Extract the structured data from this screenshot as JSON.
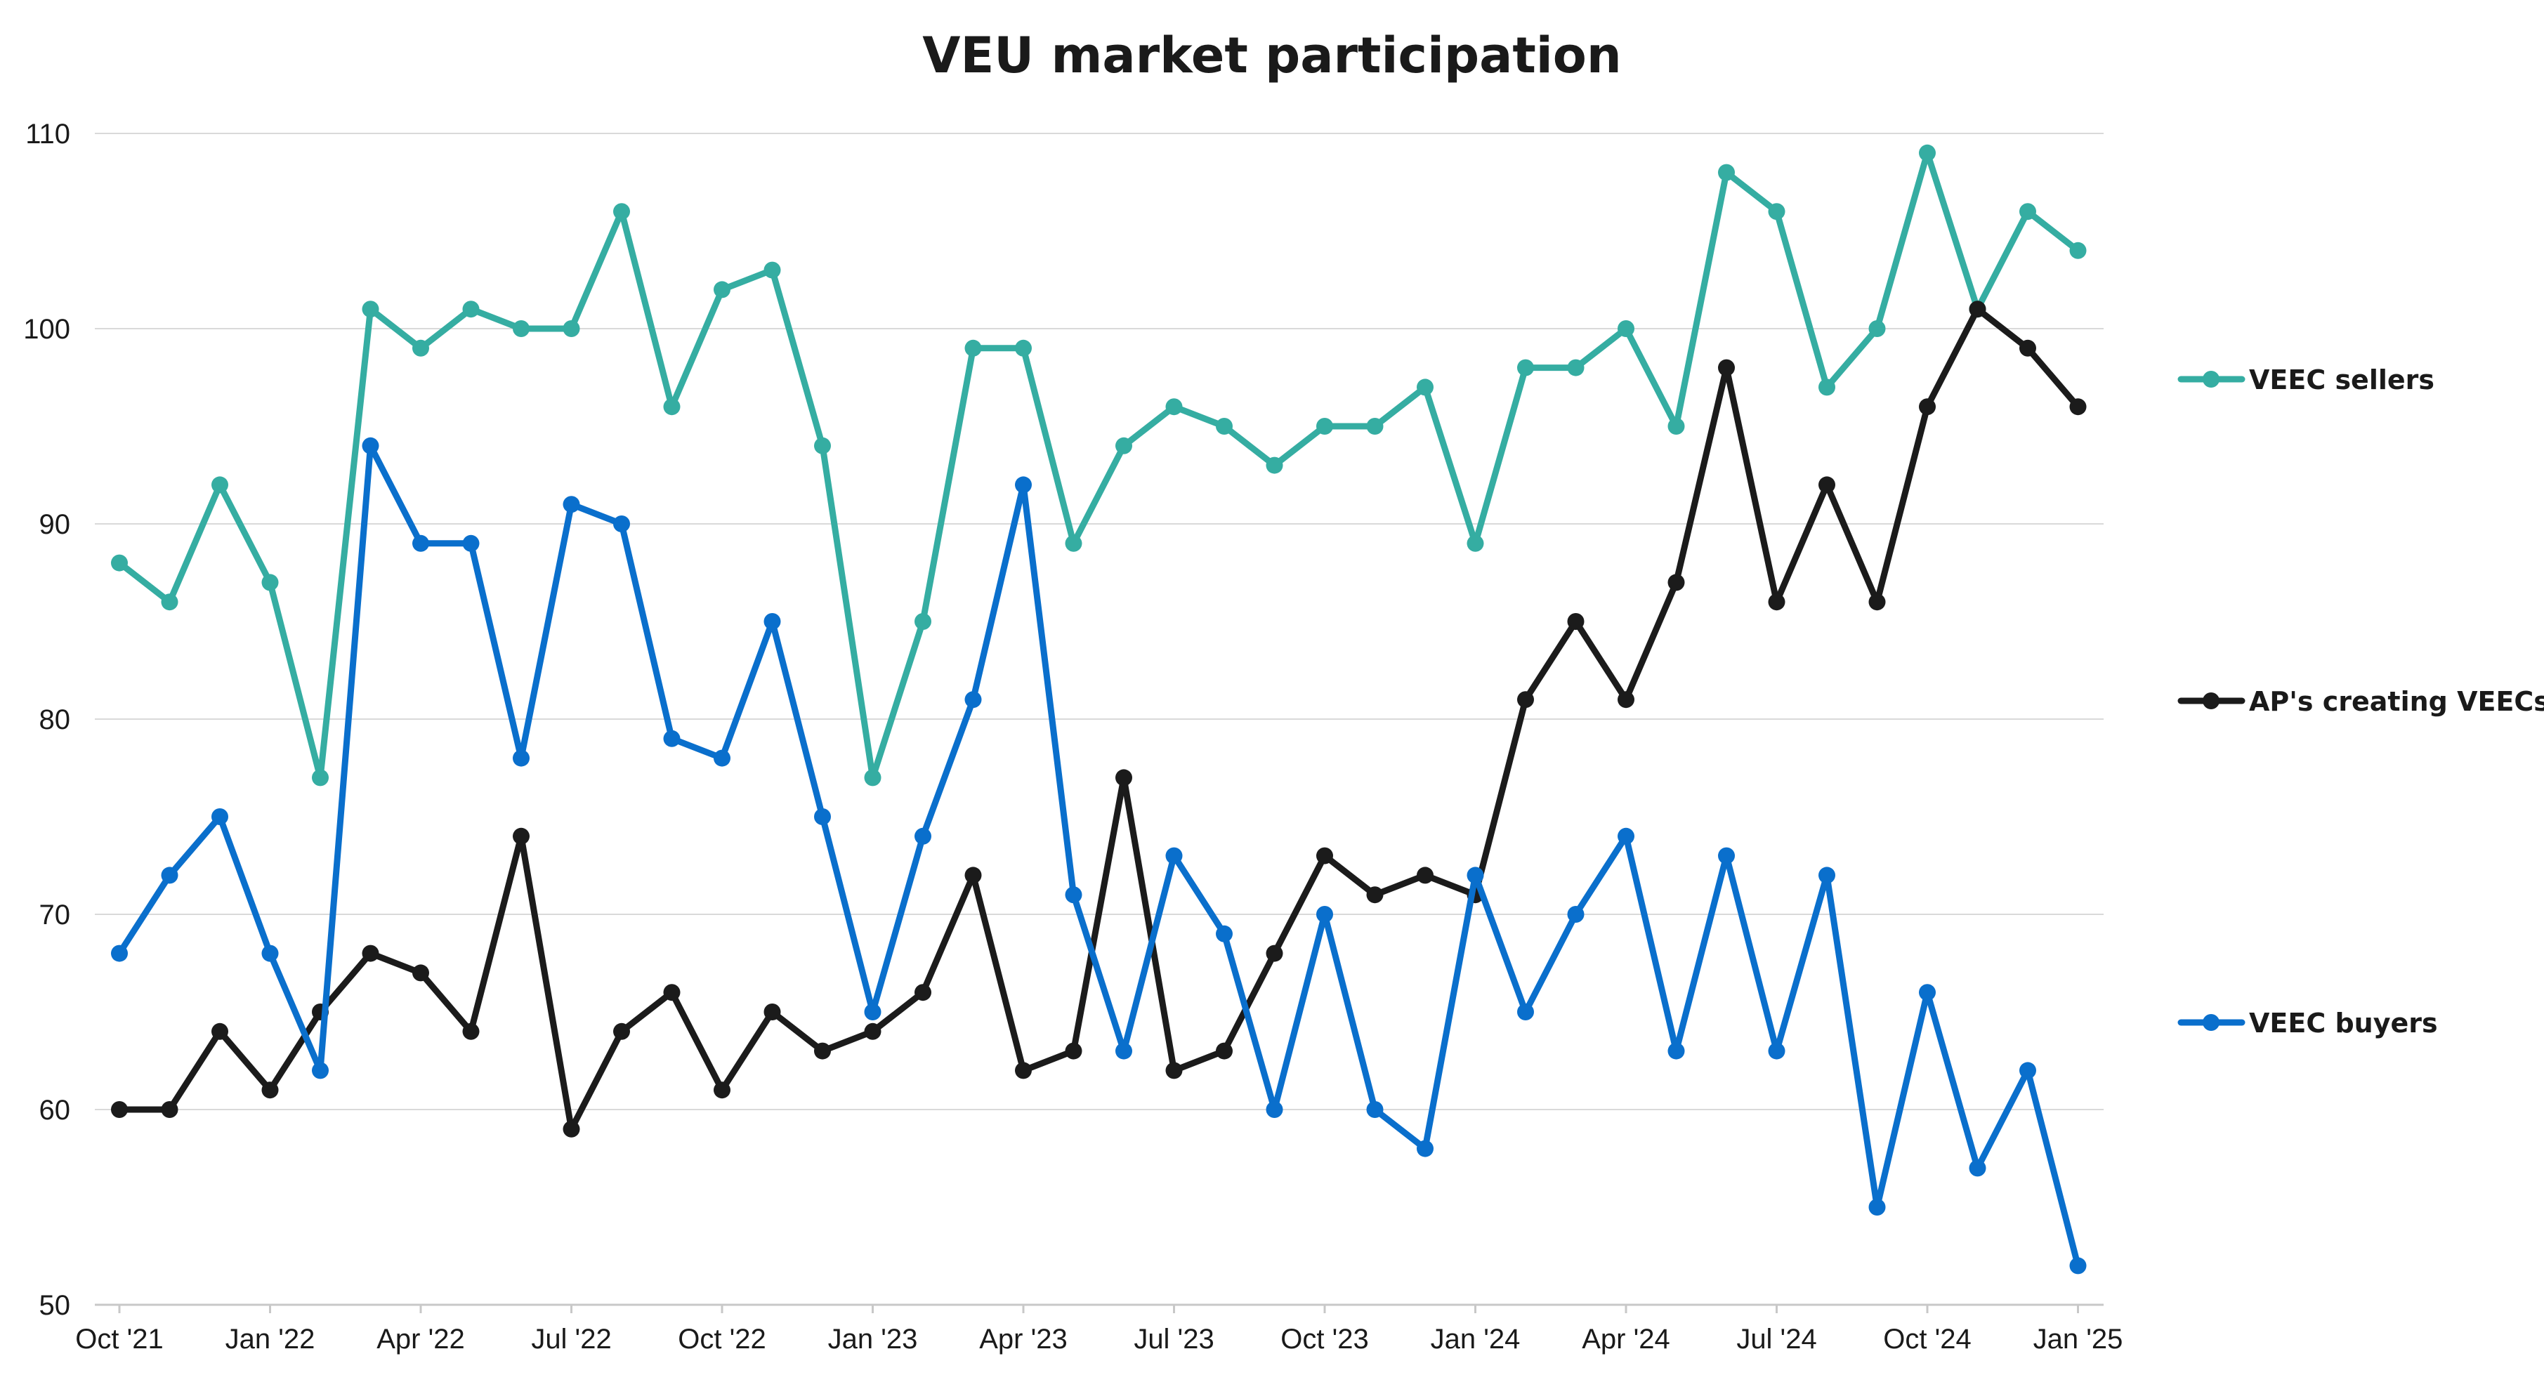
{
  "chart_data": {
    "type": "line",
    "title": "VEU market participation",
    "xlabel": "",
    "ylabel": "",
    "ylim": [
      50,
      110
    ],
    "yticks": [
      50,
      60,
      70,
      80,
      90,
      100,
      110
    ],
    "grid": true,
    "legend_position": "right",
    "x": [
      "Oct '21",
      "Nov '21",
      "Dec '21",
      "Jan '22",
      "Feb '22",
      "Mar '22",
      "Apr '22",
      "May '22",
      "Jun '22",
      "Jul '22",
      "Aug '22",
      "Sep '22",
      "Oct '22",
      "Nov '22",
      "Dec '22",
      "Jan '23",
      "Feb '23",
      "Mar '23",
      "Apr '23",
      "May '23",
      "Jun '23",
      "Jul '23",
      "Aug '23",
      "Sep '23",
      "Oct '23",
      "Nov '23",
      "Dec '23",
      "Jan '24",
      "Feb '24",
      "Mar '24",
      "Apr '24",
      "May '24",
      "Jun '24",
      "Jul '24",
      "Aug '24",
      "Sep '24",
      "Oct '24",
      "Nov '24",
      "Dec '24",
      "Jan '25"
    ],
    "xtick_labels": [
      {
        "index": 0,
        "label": "Oct '21"
      },
      {
        "index": 3,
        "label": "Jan '22"
      },
      {
        "index": 6,
        "label": "Apr '22"
      },
      {
        "index": 9,
        "label": "Jul '22"
      },
      {
        "index": 12,
        "label": "Oct '22"
      },
      {
        "index": 15,
        "label": "Jan '23"
      },
      {
        "index": 18,
        "label": "Apr '23"
      },
      {
        "index": 21,
        "label": "Jul '23"
      },
      {
        "index": 24,
        "label": "Oct '23"
      },
      {
        "index": 27,
        "label": "Jan '24"
      },
      {
        "index": 30,
        "label": "Apr '24"
      },
      {
        "index": 33,
        "label": "Jul '24"
      },
      {
        "index": 36,
        "label": "Oct '24"
      },
      {
        "index": 39,
        "label": "Jan '25"
      }
    ],
    "series": [
      {
        "name": "VEEC sellers",
        "color": "#35ADA2",
        "values": [
          88,
          86,
          92,
          87,
          77,
          101,
          99,
          101,
          100,
          100,
          106,
          96,
          102,
          103,
          94,
          77,
          85,
          99,
          99,
          89,
          94,
          96,
          95,
          93,
          95,
          95,
          97,
          89,
          98,
          98,
          100,
          95,
          108,
          106,
          97,
          100,
          109,
          101,
          106,
          104
        ]
      },
      {
        "name": "AP's creating VEECs",
        "color": "#1B1B1B",
        "values": [
          60,
          60,
          64,
          61,
          65,
          68,
          67,
          64,
          74,
          59,
          64,
          66,
          61,
          65,
          63,
          64,
          66,
          72,
          62,
          63,
          77,
          62,
          63,
          68,
          73,
          71,
          72,
          71,
          81,
          85,
          81,
          87,
          98,
          86,
          92,
          86,
          96,
          101,
          99,
          96
        ]
      },
      {
        "name": "VEEC buyers",
        "color": "#0A6FCC",
        "values": [
          68,
          72,
          75,
          68,
          62,
          94,
          89,
          89,
          78,
          91,
          90,
          79,
          78,
          85,
          75,
          65,
          74,
          81,
          92,
          71,
          63,
          73,
          69,
          60,
          70,
          60,
          58,
          72,
          65,
          70,
          74,
          63,
          73,
          63,
          72,
          55,
          66,
          57,
          62,
          52
        ]
      }
    ]
  }
}
